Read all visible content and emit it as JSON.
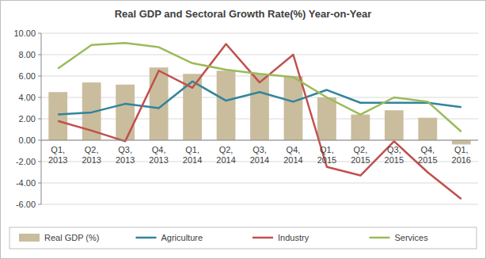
{
  "chart_data": {
    "type": "bar",
    "title": "Real GDP and Sectoral Growth Rate(%) Year-on-Year",
    "categories": [
      "Q1, 2013",
      "Q2, 2013",
      "Q3, 2013",
      "Q4, 2013",
      "Q1, 2014",
      "Q2, 2014",
      "Q3, 2014",
      "Q4, 2014",
      "Q1, 2015",
      "Q2, 2015",
      "Q3, 2015",
      "Q4, 2015",
      "Q1, 2016"
    ],
    "series": [
      {
        "name": "Real GDP (%)",
        "type": "bar",
        "color": "#c9bd9d",
        "values": [
          4.5,
          5.4,
          5.2,
          6.8,
          6.2,
          6.5,
          6.2,
          6.0,
          4.0,
          2.4,
          2.8,
          2.1,
          -0.4
        ]
      },
      {
        "name": "Agriculture",
        "type": "line",
        "color": "#31849b",
        "values": [
          2.4,
          2.6,
          3.4,
          3.0,
          5.5,
          3.7,
          4.5,
          3.6,
          4.7,
          3.5,
          3.5,
          3.5,
          3.1
        ]
      },
      {
        "name": "Industry",
        "type": "line",
        "color": "#c0504d",
        "values": [
          1.8,
          0.9,
          -0.1,
          6.5,
          4.9,
          9.0,
          5.4,
          8.0,
          -2.5,
          -3.3,
          -0.1,
          -3.0,
          -5.5
        ]
      },
      {
        "name": "Services",
        "type": "line",
        "color": "#9bbb59",
        "values": [
          6.7,
          8.9,
          9.1,
          8.7,
          7.2,
          6.6,
          6.2,
          5.9,
          4.0,
          2.4,
          4.0,
          3.6,
          0.8
        ]
      }
    ],
    "ylim": [
      -6,
      10
    ],
    "yticks": [
      {
        "value": -6,
        "label": "-6.00"
      },
      {
        "value": -4,
        "label": "-4.00"
      },
      {
        "value": -2,
        "label": "-2.00"
      },
      {
        "value": 0,
        "label": "0.00"
      },
      {
        "value": 2,
        "label": "2.00"
      },
      {
        "value": 4,
        "label": "4.00"
      },
      {
        "value": 6,
        "label": "6.00"
      },
      {
        "value": 8,
        "label": "8.00"
      },
      {
        "value": 10,
        "label": "10.00"
      }
    ],
    "grid": true,
    "legend": "bottom"
  }
}
